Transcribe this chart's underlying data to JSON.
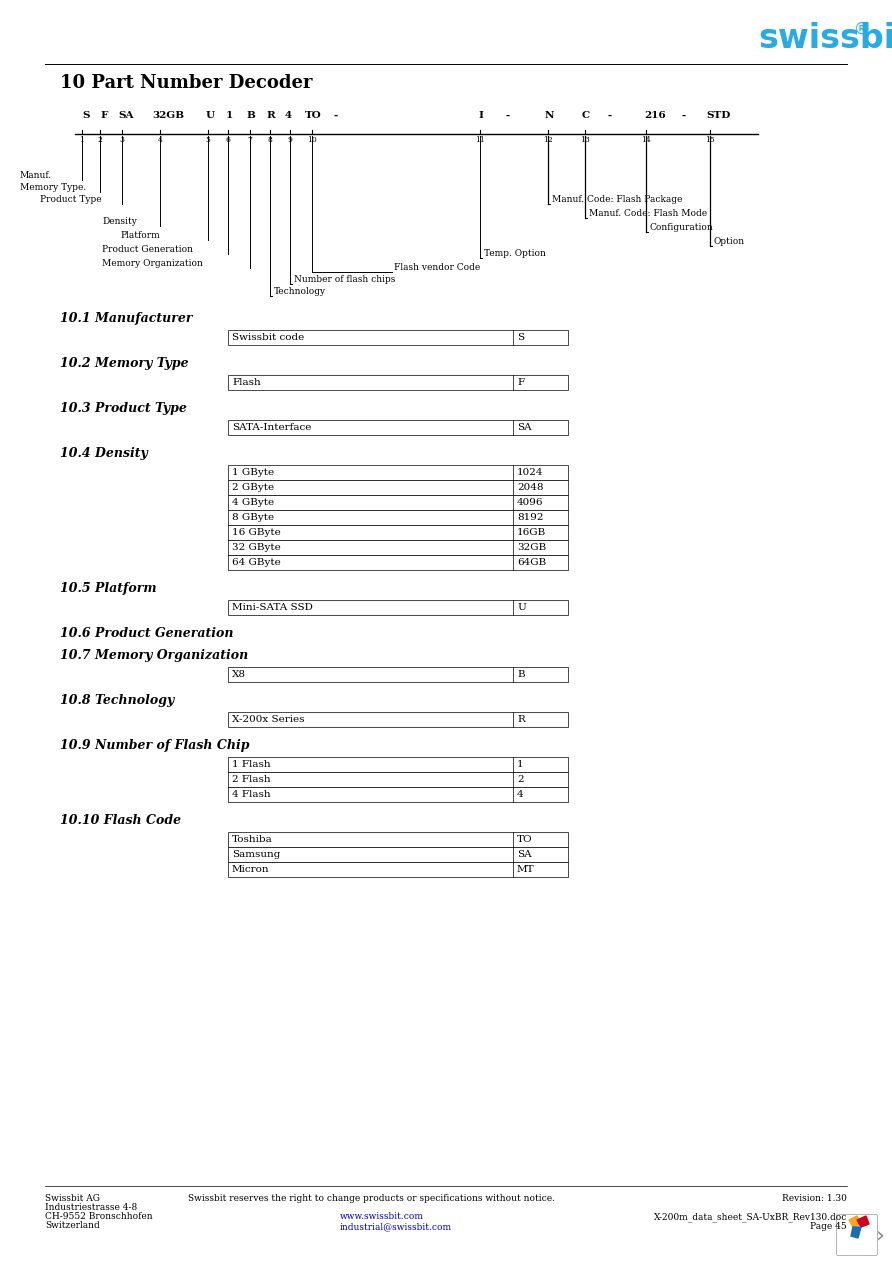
{
  "title": "10 Part Number Decoder",
  "logo_text": "swissbit",
  "logo_color": "#29abe2",
  "sections": [
    {
      "heading": "10.1 Manufacturer",
      "rows": [
        [
          "Swissbit code",
          "S"
        ]
      ]
    },
    {
      "heading": "10.2 Memory Type",
      "rows": [
        [
          "Flash",
          "F"
        ]
      ]
    },
    {
      "heading": "10.3 Product Type",
      "rows": [
        [
          "SATA-Interface",
          "SA"
        ]
      ]
    },
    {
      "heading": "10.4 Density",
      "rows": [
        [
          "1 GByte",
          "1024"
        ],
        [
          "2 GByte",
          "2048"
        ],
        [
          "4 GByte",
          "4096"
        ],
        [
          "8 GByte",
          "8192"
        ],
        [
          "16 GByte",
          "16GB"
        ],
        [
          "32 GByte",
          "32GB"
        ],
        [
          "64 GByte",
          "64GB"
        ]
      ]
    },
    {
      "heading": "10.5 Platform",
      "rows": [
        [
          "Mini-SATA SSD",
          "U"
        ]
      ]
    },
    {
      "heading": "10.6 Product Generation",
      "rows": []
    },
    {
      "heading": "10.7 Memory Organization",
      "rows": [
        [
          "X8",
          "B"
        ]
      ]
    },
    {
      "heading": "10.8 Technology",
      "rows": [
        [
          "X-200x Series",
          "R"
        ]
      ]
    },
    {
      "heading": "10.9 Number of Flash Chip",
      "rows": [
        [
          "1 Flash",
          "1"
        ],
        [
          "2 Flash",
          "2"
        ],
        [
          "4 Flash",
          "4"
        ]
      ]
    },
    {
      "heading": "10.10 Flash Code",
      "rows": [
        [
          "Toshiba",
          "TO"
        ],
        [
          "Samsung",
          "SA"
        ],
        [
          "Micron",
          "MT"
        ]
      ]
    }
  ],
  "footer_left": [
    "Swissbit AG",
    "Industriestrasse 4-8",
    "CH-9552 Bronschhofen",
    "Switzerland"
  ],
  "footer_notice": "Swissbit reserves the right to change products or specifications without notice.",
  "footer_links": [
    "www.swissbit.com",
    "industrial@swissbit.com"
  ],
  "footer_right_rev": "Revision: 1.30",
  "footer_right_doc": "X-200m_data_sheet_SA-UxBR_Rev130.doc",
  "footer_right_page": "Page 45"
}
